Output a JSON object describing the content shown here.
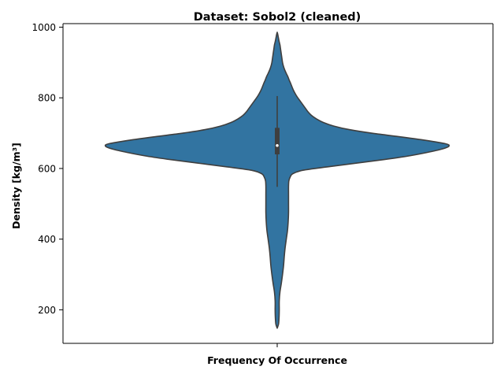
{
  "chart_data": {
    "type": "violin",
    "title": "Dataset: Sobol2 (cleaned)",
    "xlabel": "Frequency Of Occurrence",
    "ylabel": "Density [kg/m³]",
    "ylim": [
      105,
      1010
    ],
    "yticks": [
      200,
      400,
      600,
      800,
      1000
    ],
    "grid": false,
    "legend": "none",
    "color": "#3274a1",
    "edge_color": "#3f3f3f",
    "violin": {
      "min": 148,
      "max": 985,
      "q1": 640,
      "median": 665,
      "q3": 715,
      "whisker_low": 548,
      "whisker_high": 805,
      "density_profile": [
        [
          148,
          0.0
        ],
        [
          160,
          0.008
        ],
        [
          180,
          0.011
        ],
        [
          200,
          0.012
        ],
        [
          225,
          0.012
        ],
        [
          250,
          0.016
        ],
        [
          275,
          0.024
        ],
        [
          300,
          0.031
        ],
        [
          325,
          0.037
        ],
        [
          350,
          0.041
        ],
        [
          375,
          0.046
        ],
        [
          400,
          0.053
        ],
        [
          425,
          0.06
        ],
        [
          450,
          0.064
        ],
        [
          475,
          0.066
        ],
        [
          500,
          0.066
        ],
        [
          525,
          0.066
        ],
        [
          550,
          0.066
        ],
        [
          565,
          0.068
        ],
        [
          575,
          0.075
        ],
        [
          585,
          0.09
        ],
        [
          595,
          0.15
        ],
        [
          605,
          0.3
        ],
        [
          615,
          0.46
        ],
        [
          625,
          0.62
        ],
        [
          635,
          0.76
        ],
        [
          645,
          0.87
        ],
        [
          655,
          0.96
        ],
        [
          663,
          1.0
        ],
        [
          670,
          0.98
        ],
        [
          680,
          0.86
        ],
        [
          690,
          0.71
        ],
        [
          700,
          0.55
        ],
        [
          710,
          0.42
        ],
        [
          720,
          0.33
        ],
        [
          730,
          0.27
        ],
        [
          740,
          0.23
        ],
        [
          750,
          0.2
        ],
        [
          760,
          0.18
        ],
        [
          770,
          0.165
        ],
        [
          780,
          0.15
        ],
        [
          790,
          0.135
        ],
        [
          800,
          0.12
        ],
        [
          810,
          0.107
        ],
        [
          820,
          0.096
        ],
        [
          830,
          0.087
        ],
        [
          840,
          0.079
        ],
        [
          850,
          0.07
        ],
        [
          860,
          0.062
        ],
        [
          870,
          0.052
        ],
        [
          880,
          0.043
        ],
        [
          890,
          0.036
        ],
        [
          900,
          0.031
        ],
        [
          910,
          0.028
        ],
        [
          920,
          0.025
        ],
        [
          930,
          0.022
        ],
        [
          940,
          0.019
        ],
        [
          950,
          0.016
        ],
        [
          960,
          0.011
        ],
        [
          970,
          0.007
        ],
        [
          980,
          0.003
        ],
        [
          985,
          0.0
        ]
      ]
    }
  }
}
